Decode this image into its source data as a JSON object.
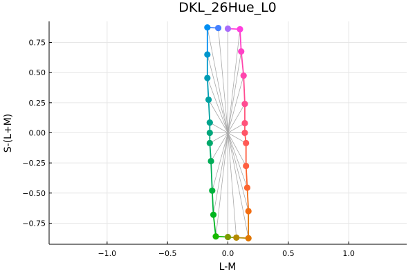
{
  "chart_data": {
    "type": "scatter",
    "title": "DKL_26Hue_L0",
    "xlabel": "L-M",
    "ylabel": "S-(L+M)",
    "xlim": [
      -1.48,
      1.48
    ],
    "ylim": [
      -0.925,
      0.925
    ],
    "xticks": [
      -1.0,
      -0.5,
      0.0,
      0.5,
      1.0
    ],
    "xtick_labels": [
      "−1.0",
      "−0.5",
      "0.0",
      "0.5",
      "1.0"
    ],
    "yticks": [
      0.75,
      0.5,
      0.25,
      0.0,
      -0.25,
      -0.5,
      -0.75
    ],
    "ytick_labels": [
      "0.75",
      "0.50",
      "0.25",
      "0.00",
      "−0.25",
      "−0.50",
      "−0.75"
    ],
    "grid": true,
    "legend": "none",
    "center": [
      0,
      0
    ],
    "points": [
      {
        "x": 0.0,
        "y": 0.865,
        "color": "#a86bfa"
      },
      {
        "x": 0.1,
        "y": 0.86,
        "color": "#ff3fde"
      },
      {
        "x": 0.11,
        "y": 0.675,
        "color": "#ff41c6"
      },
      {
        "x": 0.13,
        "y": 0.475,
        "color": "#ff46ad"
      },
      {
        "x": 0.14,
        "y": 0.24,
        "color": "#ff4c91"
      },
      {
        "x": 0.14,
        "y": 0.08,
        "color": "#ff527a"
      },
      {
        "x": 0.14,
        "y": 0.0,
        "color": "#ff5567"
      },
      {
        "x": 0.15,
        "y": -0.085,
        "color": "#ff5a55"
      },
      {
        "x": 0.15,
        "y": -0.275,
        "color": "#ff5e40"
      },
      {
        "x": 0.16,
        "y": -0.455,
        "color": "#fb6530"
      },
      {
        "x": 0.17,
        "y": -0.65,
        "color": "#f26d12"
      },
      {
        "x": 0.17,
        "y": -0.875,
        "color": "#e07600"
      },
      {
        "x": 0.07,
        "y": -0.87,
        "color": "#b58a00"
      },
      {
        "x": 0.0,
        "y": -0.865,
        "color": "#7d9a00"
      },
      {
        "x": -0.1,
        "y": -0.86,
        "color": "#17b900"
      },
      {
        "x": -0.12,
        "y": -0.68,
        "color": "#00b51e"
      },
      {
        "x": -0.13,
        "y": -0.48,
        "color": "#00b13d"
      },
      {
        "x": -0.14,
        "y": -0.235,
        "color": "#00ac56"
      },
      {
        "x": -0.15,
        "y": -0.085,
        "color": "#00a86b"
      },
      {
        "x": -0.15,
        "y": 0.0,
        "color": "#00a67b"
      },
      {
        "x": -0.15,
        "y": 0.085,
        "color": "#00a48c"
      },
      {
        "x": -0.16,
        "y": 0.275,
        "color": "#00a1a1"
      },
      {
        "x": -0.17,
        "y": 0.455,
        "color": "#009cb5"
      },
      {
        "x": -0.17,
        "y": 0.65,
        "color": "#0096cc"
      },
      {
        "x": -0.17,
        "y": 0.875,
        "color": "#008ef2"
      },
      {
        "x": -0.08,
        "y": 0.87,
        "color": "#4380ff"
      }
    ]
  }
}
